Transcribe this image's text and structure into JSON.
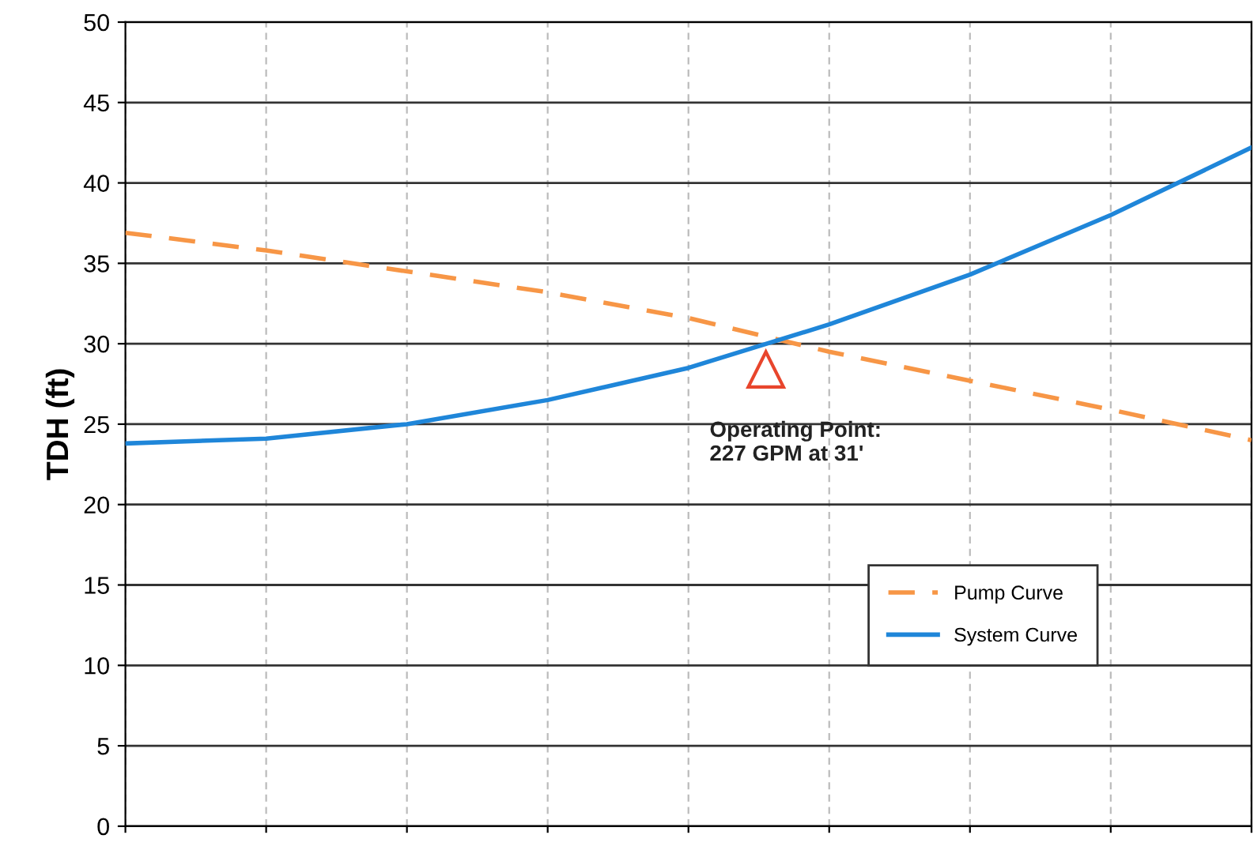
{
  "chart_data": {
    "type": "line",
    "ylabel": "TDH (ft)",
    "categories": [
      null,
      null,
      null,
      null,
      null,
      null,
      null,
      null,
      null
    ],
    "series": [
      {
        "name": "Pump Curve",
        "color": "#f79646",
        "line_style": "dashed",
        "values": [
          36.9,
          35.8,
          34.5,
          33.2,
          31.6,
          29.5,
          27.7,
          25.9,
          24.0
        ]
      },
      {
        "name": "System Curve",
        "color": "#1f86d9",
        "line_style": "solid",
        "values": [
          23.8,
          24.1,
          25.0,
          26.5,
          28.5,
          31.2,
          34.3,
          38.0,
          42.2
        ]
      }
    ],
    "ylim": [
      0,
      50
    ],
    "yticks": [
      0,
      5,
      10,
      15,
      20,
      25,
      30,
      35,
      40,
      45,
      50
    ],
    "grid": true,
    "legend": "bottom right",
    "tick_labels": "y",
    "marker": "none",
    "annotations": [
      "Operating Point:\n227 GPM at 31'"
    ]
  }
}
